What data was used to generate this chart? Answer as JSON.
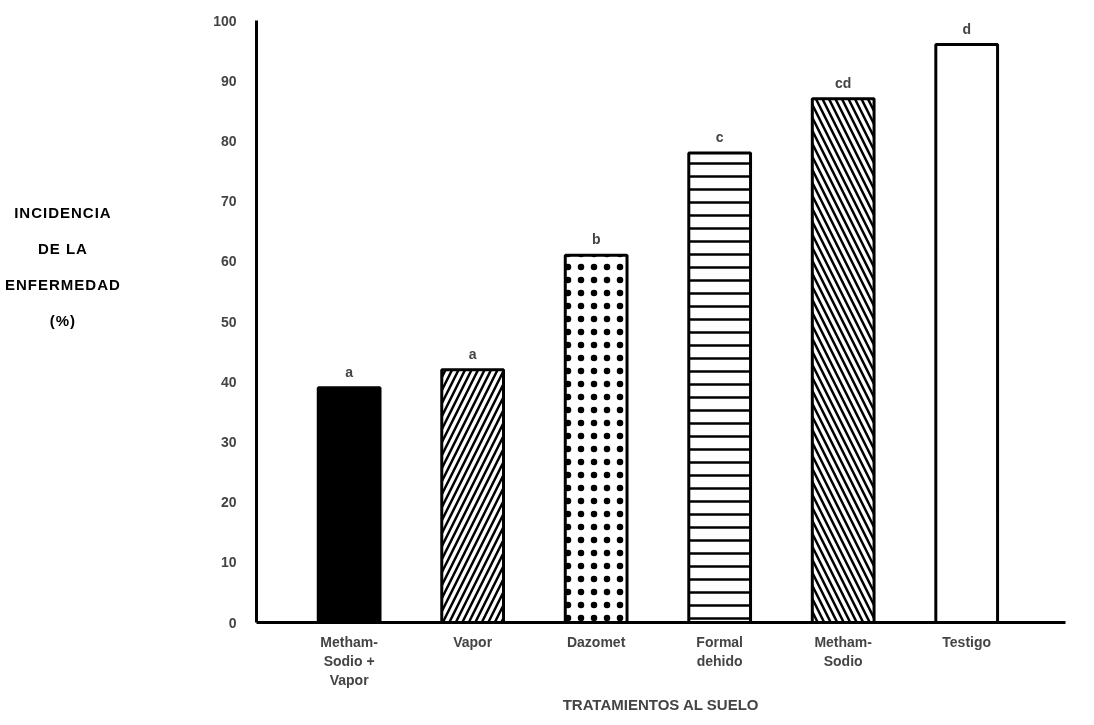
{
  "chart_data": {
    "type": "bar",
    "categories": [
      "Metham-\nSodio +\nVapor",
      "Vapor",
      "Dazomet",
      "Formal\ndehido",
      "Metham-\nSodio",
      "Testigo"
    ],
    "values": [
      39,
      42,
      61,
      78,
      87,
      96
    ],
    "colors": [
      "#000000",
      "#ffffff",
      "#ffffff",
      "#ffffff",
      "#ffffff",
      "#ffffff"
    ],
    "xlabel": "TRATAMIENTOS AL SUELO",
    "ylabel": "INCIDENCIA\nDE LA\nENFERMEDAD\n(%)",
    "ylim": [
      0,
      100
    ],
    "yticks": [
      0,
      10,
      20,
      30,
      40,
      50,
      60,
      70,
      80,
      90,
      100
    ],
    "grid": false,
    "annotations": [
      {
        "text": "a",
        "x": "Metham-\nSodio +\nVapor",
        "y": 39
      },
      {
        "text": "a",
        "x": "Vapor",
        "y": 42
      },
      {
        "text": "b",
        "x": "Dazomet",
        "y": 61
      },
      {
        "text": "c",
        "x": "Formal\ndehido",
        "y": 78
      },
      {
        "text": "cd",
        "x": "Metham-\nSodio",
        "y": 87
      },
      {
        "text": "d",
        "x": "Testigo",
        "y": 96
      }
    ]
  }
}
